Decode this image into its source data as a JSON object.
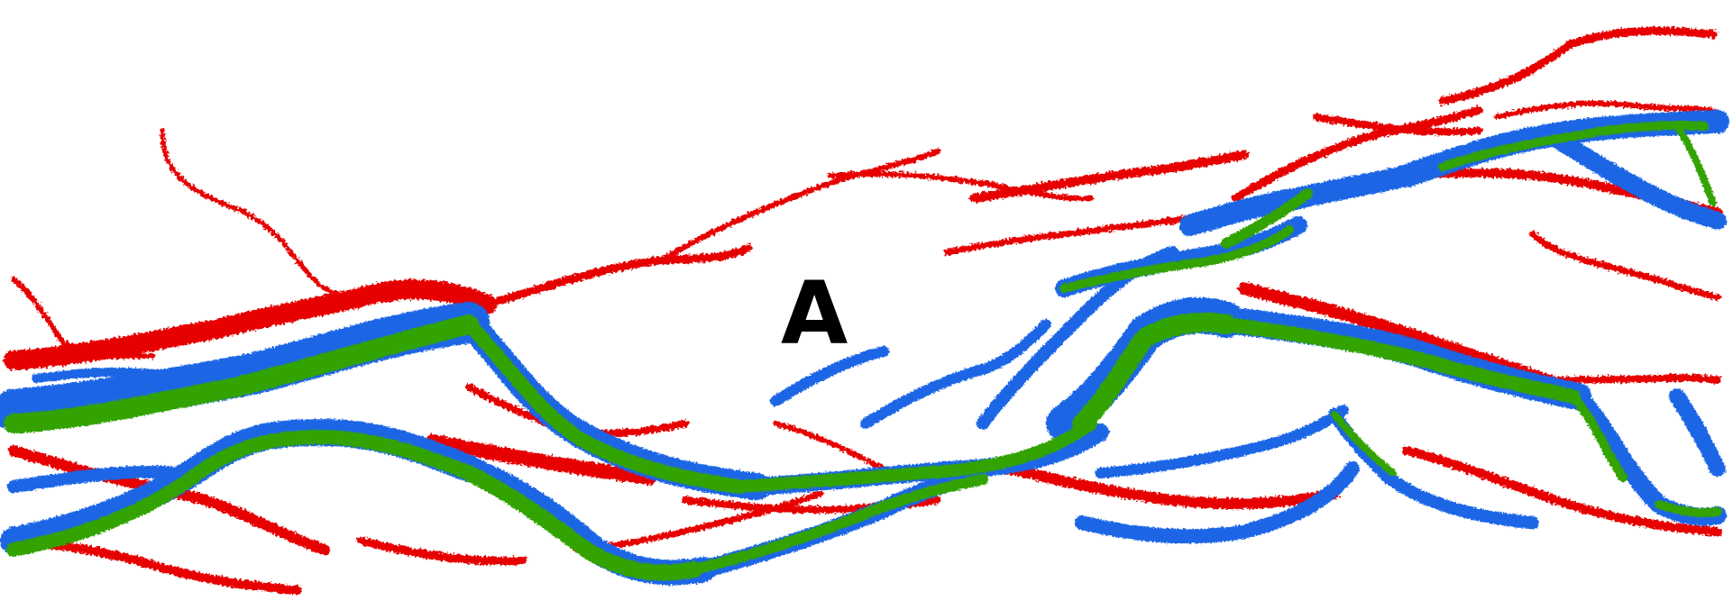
{
  "figure": {
    "panel_label": "A"
  },
  "colors": {
    "outer_class": "#e60000",
    "middle_class": "#1a66e6",
    "inner_class": "#33a300"
  }
}
